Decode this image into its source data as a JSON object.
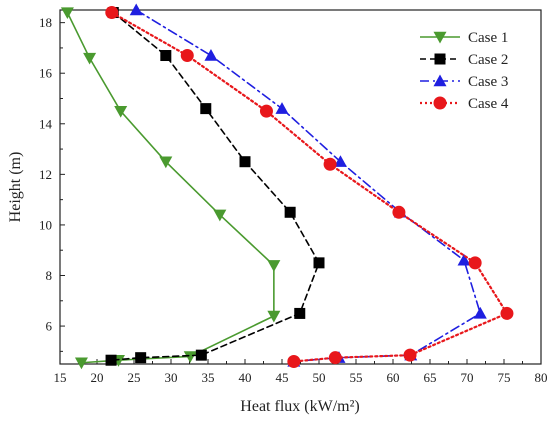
{
  "chart_data": {
    "type": "line",
    "xlabel": "Heat flux (kW/m²)",
    "ylabel": "Height (m)",
    "xlim": [
      15,
      80
    ],
    "ylim": [
      4.5,
      18.5
    ],
    "xticks": [
      "15",
      "20",
      "25",
      "30",
      "35",
      "40",
      "45",
      "50",
      "55",
      "60",
      "65",
      "70",
      "75",
      "80"
    ],
    "yticks": [
      "6",
      "8",
      "10",
      "12",
      "14",
      "16",
      "18"
    ],
    "legend_position": "top-right",
    "grid": false,
    "series": [
      {
        "name": "Case 1",
        "color": "#4a9a2f",
        "line_style": "solid",
        "marker": "triangle-down",
        "x": [
          16.0,
          19.0,
          23.2,
          29.3,
          36.6,
          43.9,
          43.9,
          32.6,
          22.9,
          17.9
        ],
        "y": [
          18.4,
          16.6,
          14.5,
          12.5,
          10.4,
          8.4,
          6.4,
          4.8,
          4.65,
          4.55
        ]
      },
      {
        "name": "Case 2",
        "color": "#000000",
        "line_style": "dashed",
        "marker": "square",
        "x": [
          22.2,
          29.3,
          34.7,
          40.0,
          46.1,
          50.0,
          47.4,
          34.1,
          25.9,
          21.9
        ],
        "y": [
          18.4,
          16.7,
          14.6,
          12.5,
          10.5,
          8.5,
          6.5,
          4.85,
          4.75,
          4.65
        ]
      },
      {
        "name": "Case 3",
        "color": "#1f1fe0",
        "line_style": "dash-dot",
        "marker": "triangle-up",
        "x": [
          25.3,
          35.4,
          45.0,
          52.9,
          61.0,
          69.6,
          71.8,
          62.4,
          52.7,
          46.6
        ],
        "y": [
          18.5,
          16.7,
          14.6,
          12.5,
          10.5,
          8.6,
          6.5,
          4.85,
          4.75,
          4.6
        ]
      },
      {
        "name": "Case 4",
        "color": "#e8171b",
        "line_style": "dotted",
        "marker": "circle",
        "x": [
          22.0,
          32.2,
          42.9,
          51.5,
          60.8,
          71.1,
          75.4,
          62.3,
          52.2,
          46.6
        ],
        "y": [
          18.4,
          16.7,
          14.5,
          12.4,
          10.5,
          8.5,
          6.5,
          4.85,
          4.75,
          4.6
        ]
      }
    ]
  }
}
